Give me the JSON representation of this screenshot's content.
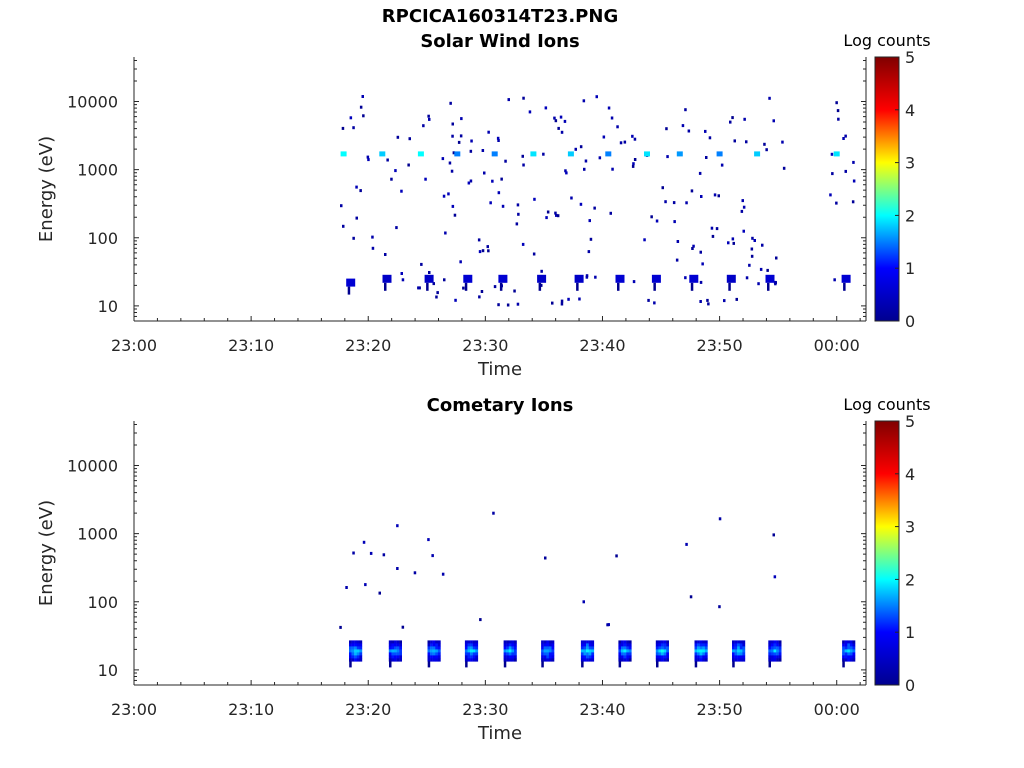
{
  "figure": {
    "title": "RPCICA160314T23.PNG",
    "xlabel": "Time",
    "ylabel": "Energy (eV)",
    "colorbar_label": "Log counts"
  },
  "chart_data": [
    {
      "type": "heatmap",
      "title": "Solar Wind Ions",
      "xlabel": "Time",
      "ylabel": "Energy (eV)",
      "x_ticks": [
        "23:00",
        "23:10",
        "23:20",
        "23:30",
        "23:40",
        "23:50",
        "00:00"
      ],
      "xlim_minutes": [
        0,
        62.5
      ],
      "y_scale": "log",
      "y_ticks": [
        10,
        100,
        1000,
        10000
      ],
      "y_tick_labels": [
        "10",
        "100",
        "1000",
        "10000"
      ],
      "ylim": [
        6,
        45000
      ],
      "colorbar": {
        "label": "Log counts",
        "range": [
          0,
          5
        ],
        "ticks": [
          "0",
          "1",
          "2",
          "3",
          "4",
          "5"
        ],
        "colormap": [
          "#00008f",
          "#0000ff",
          "#00ffff",
          "#ffff00",
          "#ff0000",
          "#800000"
        ]
      },
      "data_coverage_minutes": [
        17.5,
        61.5
      ],
      "bursts": [
        {
          "t": 17.9,
          "e": 1700,
          "v": 2.0
        },
        {
          "t": 21.2,
          "e": 1700,
          "v": 1.8
        },
        {
          "t": 24.5,
          "e": 1700,
          "v": 2.0
        },
        {
          "t": 27.6,
          "e": 1700,
          "v": 1.5
        },
        {
          "t": 30.8,
          "e": 1700,
          "v": 1.5
        },
        {
          "t": 34.1,
          "e": 1700,
          "v": 1.9
        },
        {
          "t": 37.3,
          "e": 1700,
          "v": 1.8
        },
        {
          "t": 40.5,
          "e": 1700,
          "v": 1.5
        },
        {
          "t": 43.8,
          "e": 1700,
          "v": 1.9
        },
        {
          "t": 46.6,
          "e": 1700,
          "v": 1.6
        },
        {
          "t": 50.0,
          "e": 1700,
          "v": 1.5
        },
        {
          "t": 53.2,
          "e": 1700,
          "v": 1.8
        },
        {
          "t": 60.0,
          "e": 1700,
          "v": 1.9
        },
        {
          "t": 18.5,
          "e": 22,
          "v": 0.6
        },
        {
          "t": 21.6,
          "e": 25,
          "v": 0.5
        },
        {
          "t": 25.2,
          "e": 25,
          "v": 0.5
        },
        {
          "t": 28.5,
          "e": 25,
          "v": 0.6
        },
        {
          "t": 31.5,
          "e": 25,
          "v": 0.6
        },
        {
          "t": 34.8,
          "e": 25,
          "v": 0.5
        },
        {
          "t": 38.0,
          "e": 25,
          "v": 0.5
        },
        {
          "t": 41.5,
          "e": 25,
          "v": 0.6
        },
        {
          "t": 44.6,
          "e": 25,
          "v": 0.6
        },
        {
          "t": 47.8,
          "e": 25,
          "v": 0.6
        },
        {
          "t": 51.0,
          "e": 25,
          "v": 0.5
        },
        {
          "t": 54.3,
          "e": 25,
          "v": 0.6
        },
        {
          "t": 60.8,
          "e": 25,
          "v": 0.6
        }
      ]
    },
    {
      "type": "heatmap",
      "title": "Cometary Ions",
      "xlabel": "Time",
      "ylabel": "Energy (eV)",
      "x_ticks": [
        "23:00",
        "23:10",
        "23:20",
        "23:30",
        "23:40",
        "23:50",
        "00:00"
      ],
      "xlim_minutes": [
        0,
        62.5
      ],
      "y_scale": "log",
      "y_ticks": [
        10,
        100,
        1000,
        10000
      ],
      "y_tick_labels": [
        "10",
        "100",
        "1000",
        "10000"
      ],
      "ylim": [
        6,
        45000
      ],
      "colorbar": {
        "label": "Log counts",
        "range": [
          0,
          5
        ],
        "ticks": [
          "0",
          "1",
          "2",
          "3",
          "4",
          "5"
        ],
        "colormap": [
          "#00008f",
          "#0000ff",
          "#00ffff",
          "#ffff00",
          "#ff0000",
          "#800000"
        ]
      },
      "data_coverage_minutes": [
        17.5,
        61.5
      ],
      "bursts": [
        {
          "t": 18.8,
          "e": 20,
          "v": 1.9
        },
        {
          "t": 22.2,
          "e": 20,
          "v": 1.8
        },
        {
          "t": 25.5,
          "e": 20,
          "v": 1.8
        },
        {
          "t": 28.7,
          "e": 20,
          "v": 1.9
        },
        {
          "t": 32.0,
          "e": 20,
          "v": 1.8
        },
        {
          "t": 35.2,
          "e": 20,
          "v": 1.8
        },
        {
          "t": 38.6,
          "e": 20,
          "v": 2.0
        },
        {
          "t": 41.8,
          "e": 20,
          "v": 1.8
        },
        {
          "t": 45.0,
          "e": 20,
          "v": 1.9
        },
        {
          "t": 48.3,
          "e": 20,
          "v": 2.0
        },
        {
          "t": 51.5,
          "e": 20,
          "v": 1.9
        },
        {
          "t": 54.6,
          "e": 20,
          "v": 1.8
        },
        {
          "t": 60.9,
          "e": 20,
          "v": 1.9
        }
      ]
    }
  ]
}
